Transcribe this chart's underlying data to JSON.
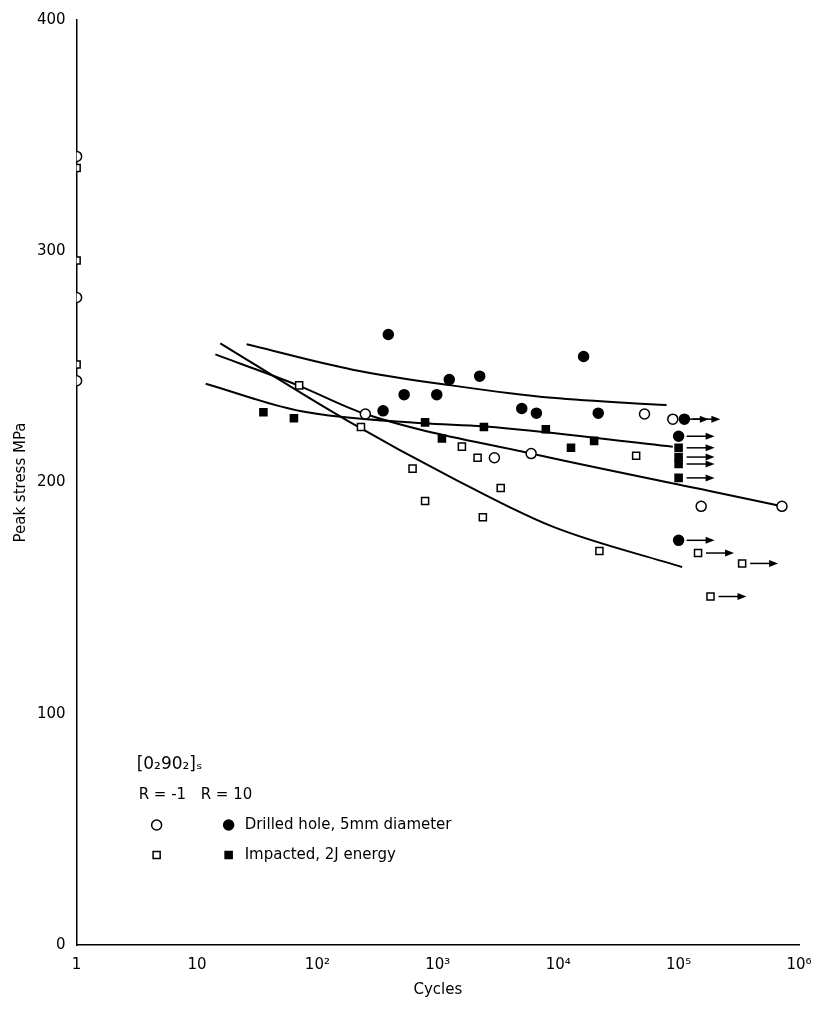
{
  "chart_data": {
    "type": "scatter",
    "xlabel": "Cycles",
    "ylabel": "Peak stress MPa",
    "legend_title": "[0₂90₂]ₛ",
    "annotations": [
      "R = -1",
      "R = 10"
    ],
    "log": "x",
    "grid": false,
    "legend": "bottom left",
    "marker": "circle",
    "xlim": [
      1,
      1000000
    ],
    "xticks": [
      1,
      10,
      {
        "value": 100,
        "label": "10²"
      },
      {
        "value": 1000,
        "label": "10³"
      },
      {
        "value": 10000,
        "label": "10⁴"
      },
      {
        "value": 100000,
        "label": "10⁵"
      },
      {
        "value": 1000000,
        "label": "10⁶"
      }
    ],
    "ylim": [
      0,
      400
    ],
    "yticks": [
      0,
      100,
      200,
      300,
      400
    ],
    "series": [
      {
        "color": "#ffffff",
        "x": [
          1,
          1,
          1,
          250,
          2950,
          5960,
          52100,
          154000,
          722000
        ],
        "values": [
          341,
          280,
          244,
          229.6,
          210.7,
          212.5,
          229.6,
          189.7,
          189.7
        ]
      },
      {
        "name": "Drilled hole, 5mm diameter",
        "color": "#000000",
        "x": [
          388,
          351,
          525,
          980,
          1245,
          2228,
          4980,
          6590,
          16250,
          21500
        ],
        "values": [
          264,
          231,
          238,
          238,
          244.5,
          246,
          232,
          230,
          254.5,
          230
        ]
      },
      {
        "marker": "square",
        "color": "#ffffff",
        "x": [
          1,
          1,
          1,
          70.5,
          230,
          617,
          784,
          1585,
          2140,
          2366,
          3330,
          22000,
          44400
        ],
        "values": [
          336,
          296,
          251,
          242,
          224,
          206,
          192,
          215.5,
          210.7,
          185,
          197.6,
          170.4,
          211.6
        ]
      },
      {
        "name": "Impacted, 2J energy",
        "marker": "square",
        "color": "#000000",
        "x": [
          35.6,
          63.8,
          784,
          1082,
          2415,
          7890,
          12770,
          19870
        ],
        "values": [
          230.4,
          227.8,
          226,
          219,
          224,
          223,
          215,
          218
        ]
      },
      {
        "color": "#ffffff",
        "x": [
          89500
        ],
        "values": [
          227.4
        ]
      },
      {
        "color": "#000000",
        "x": [
          111700,
          100000,
          100000
        ],
        "values": [
          227.4,
          220,
          175
        ]
      },
      {
        "marker": "square",
        "color": "#ffffff",
        "x": [
          145000,
          337000,
          184000
        ],
        "values": [
          169.5,
          165,
          150.7
        ]
      },
      {
        "marker": "square",
        "color": "#000000",
        "x": [
          100000,
          100000,
          100000,
          100000
        ],
        "values": [
          215,
          211,
          208,
          202
        ]
      },
      {
        "type": "line",
        "marker": "none",
        "color": "#000000",
        "x": [
          25.8,
          196,
          1290,
          8900,
          79400
        ],
        "values": [
          259.8,
          248.8,
          242,
          236.6,
          233.5
        ]
      },
      {
        "type": "line",
        "marker": "none",
        "color": "#000000",
        "x": [
          14.2,
          70.5,
          250,
          5960,
          181000,
          722000
        ],
        "values": [
          255.4,
          241.8,
          229.6,
          212.5,
          196.3,
          189.7
        ]
      },
      {
        "type": "line",
        "marker": "none",
        "color": "#000000",
        "x": [
          11.8,
          72,
          753,
          2366,
          89500
        ],
        "values": [
          242.7,
          230.9,
          225.6,
          224.3,
          215.5
        ]
      },
      {
        "type": "line",
        "marker": "none",
        "color": "#000000",
        "x": [
          15.6,
          174,
          1375,
          8900,
          107000
        ],
        "values": [
          260.2,
          227,
          201.5,
          181,
          163.4
        ]
      }
    ]
  }
}
